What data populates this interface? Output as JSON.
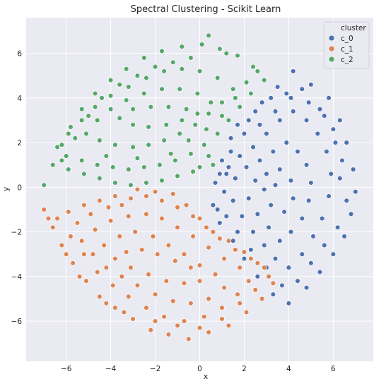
{
  "chart_data": {
    "type": "scatter",
    "title": "Spectral Clustering - Scikit Learn",
    "xlabel": "x",
    "ylabel": "y",
    "xlim": [
      -7.8,
      7.8
    ],
    "ylim": [
      -7.8,
      7.6
    ],
    "xticks": [
      -6,
      -4,
      -2,
      0,
      2,
      4,
      6
    ],
    "yticks": [
      -6,
      -4,
      -2,
      0,
      2,
      4,
      6
    ],
    "grid": true,
    "legend": {
      "title": "cluster",
      "placement": "top-right",
      "entries": [
        "c_0",
        "c_1",
        "c_2"
      ]
    },
    "series": [
      {
        "name": "c_0",
        "color": "#4c72b0",
        "points": [
          [
            1.0,
            1.2
          ],
          [
            1.4,
            2.2
          ],
          [
            2.2,
            3.0
          ],
          [
            2.8,
            3.8
          ],
          [
            3.5,
            4.5
          ],
          [
            4.2,
            5.2
          ],
          [
            5.0,
            4.6
          ],
          [
            5.8,
            4.0
          ],
          [
            6.3,
            3.0
          ],
          [
            6.6,
            2.0
          ],
          [
            6.9,
            0.8
          ],
          [
            7.0,
            -0.2
          ],
          [
            6.8,
            -1.2
          ],
          [
            6.5,
            -2.2
          ],
          [
            6.0,
            -3.0
          ],
          [
            5.4,
            -3.8
          ],
          [
            4.8,
            -4.5
          ],
          [
            4.0,
            -5.2
          ],
          [
            3.3,
            -4.8
          ],
          [
            2.6,
            -4.0
          ],
          [
            2.0,
            -3.2
          ],
          [
            1.5,
            -2.4
          ],
          [
            0.9,
            -1.6
          ],
          [
            0.6,
            -0.8
          ],
          [
            0.7,
            0.2
          ],
          [
            1.2,
            0.6
          ],
          [
            1.8,
            1.4
          ],
          [
            2.4,
            1.8
          ],
          [
            3.0,
            2.4
          ],
          [
            3.6,
            3.0
          ],
          [
            4.2,
            3.4
          ],
          [
            4.8,
            3.0
          ],
          [
            5.3,
            2.4
          ],
          [
            5.7,
            1.6
          ],
          [
            5.9,
            0.6
          ],
          [
            5.8,
            -0.4
          ],
          [
            5.5,
            -1.4
          ],
          [
            5.1,
            -2.2
          ],
          [
            4.6,
            -3.0
          ],
          [
            4.0,
            -3.6
          ],
          [
            3.4,
            -3.2
          ],
          [
            2.9,
            -2.6
          ],
          [
            2.4,
            -2.0
          ],
          [
            1.9,
            -1.3
          ],
          [
            1.5,
            -0.6
          ],
          [
            1.6,
            0.4
          ],
          [
            2.1,
            0.9
          ],
          [
            2.7,
            1.2
          ],
          [
            3.3,
            1.6
          ],
          [
            3.9,
            2.0
          ],
          [
            4.4,
            1.6
          ],
          [
            4.8,
            1.0
          ],
          [
            5.0,
            0.2
          ],
          [
            4.9,
            -0.6
          ],
          [
            4.6,
            -1.4
          ],
          [
            4.1,
            -2.0
          ],
          [
            3.6,
            -2.4
          ],
          [
            3.1,
            -1.8
          ],
          [
            2.6,
            -1.2
          ],
          [
            2.2,
            -0.5
          ],
          [
            2.5,
            0.3
          ],
          [
            3.0,
            0.6
          ],
          [
            3.6,
            0.8
          ],
          [
            4.1,
            0.3
          ],
          [
            4.2,
            -0.5
          ],
          [
            3.8,
            -1.1
          ],
          [
            3.2,
            -0.8
          ],
          [
            2.9,
            -0.1
          ],
          [
            3.4,
            0.1
          ],
          [
            1.1,
            -0.2
          ],
          [
            1.3,
            0.9
          ],
          [
            0.8,
            -1.0
          ],
          [
            1.7,
            2.8
          ],
          [
            2.5,
            3.4
          ],
          [
            3.2,
            4.0
          ],
          [
            3.9,
            4.2
          ],
          [
            4.6,
            4.4
          ],
          [
            5.4,
            3.5
          ],
          [
            6.0,
            2.6
          ],
          [
            6.4,
            1.2
          ],
          [
            6.6,
            -0.6
          ],
          [
            6.2,
            -1.8
          ],
          [
            5.6,
            -2.6
          ],
          [
            5.0,
            -3.4
          ],
          [
            4.4,
            -4.2
          ],
          [
            3.7,
            -4.4
          ],
          [
            3.0,
            -3.6
          ],
          [
            2.3,
            -2.8
          ],
          [
            1.7,
            -2.0
          ],
          [
            1.2,
            -1.3
          ],
          [
            0.9,
            0.6
          ],
          [
            1.4,
            1.6
          ],
          [
            2.0,
            2.4
          ],
          [
            2.7,
            2.8
          ],
          [
            3.4,
            3.4
          ],
          [
            4.1,
            4.0
          ],
          [
            4.9,
            3.8
          ],
          [
            5.6,
            3.2
          ],
          [
            6.1,
            2.0
          ],
          [
            6.3,
            0.4
          ]
        ]
      },
      {
        "name": "c_1",
        "color": "#dd8452",
        "points": [
          [
            -7.0,
            -1.0
          ],
          [
            -6.6,
            -1.8
          ],
          [
            -6.2,
            -2.6
          ],
          [
            -5.7,
            -3.4
          ],
          [
            -5.1,
            -4.2
          ],
          [
            -4.5,
            -4.9
          ],
          [
            -3.8,
            -5.4
          ],
          [
            -3.0,
            -5.9
          ],
          [
            -2.2,
            -6.4
          ],
          [
            -1.4,
            -6.6
          ],
          [
            -0.5,
            -6.8
          ],
          [
            0.4,
            -6.5
          ],
          [
            1.3,
            -6.2
          ],
          [
            2.1,
            -5.6
          ],
          [
            2.8,
            -5.0
          ],
          [
            3.3,
            -4.3
          ],
          [
            2.9,
            -3.6
          ],
          [
            2.3,
            -3.2
          ],
          [
            1.6,
            -2.8
          ],
          [
            0.9,
            -2.3
          ],
          [
            0.3,
            -1.8
          ],
          [
            -0.3,
            -1.3
          ],
          [
            -1.0,
            -0.9
          ],
          [
            -1.7,
            -0.6
          ],
          [
            -2.4,
            -0.4
          ],
          [
            -3.1,
            -0.5
          ],
          [
            -3.8,
            -0.4
          ],
          [
            -4.5,
            -0.6
          ],
          [
            -5.2,
            -0.8
          ],
          [
            -5.9,
            -1.1
          ],
          [
            -6.4,
            -1.4
          ],
          [
            -5.8,
            -2.2
          ],
          [
            -5.2,
            -3.0
          ],
          [
            -4.6,
            -3.8
          ],
          [
            -3.9,
            -4.4
          ],
          [
            -3.2,
            -4.9
          ],
          [
            -2.4,
            -5.4
          ],
          [
            -1.6,
            -5.8
          ],
          [
            -0.7,
            -6.0
          ],
          [
            0.2,
            -5.8
          ],
          [
            1.0,
            -5.4
          ],
          [
            1.7,
            -4.8
          ],
          [
            2.2,
            -4.2
          ],
          [
            1.8,
            -3.6
          ],
          [
            1.1,
            -3.2
          ],
          [
            0.4,
            -2.7
          ],
          [
            -0.3,
            -2.2
          ],
          [
            -1.0,
            -1.8
          ],
          [
            -1.7,
            -1.4
          ],
          [
            -2.4,
            -1.2
          ],
          [
            -3.2,
            -1.3
          ],
          [
            -4.0,
            -1.5
          ],
          [
            -4.7,
            -1.9
          ],
          [
            -5.3,
            -2.4
          ],
          [
            -4.8,
            -3.0
          ],
          [
            -4.2,
            -3.6
          ],
          [
            -3.5,
            -4.0
          ],
          [
            -2.8,
            -4.4
          ],
          [
            -2.0,
            -4.8
          ],
          [
            -1.2,
            -5.1
          ],
          [
            -0.4,
            -5.2
          ],
          [
            0.4,
            -5.0
          ],
          [
            1.1,
            -4.5
          ],
          [
            0.7,
            -3.9
          ],
          [
            0.0,
            -3.5
          ],
          [
            -0.7,
            -3.0
          ],
          [
            -1.4,
            -2.6
          ],
          [
            -2.1,
            -2.2
          ],
          [
            -2.9,
            -2.0
          ],
          [
            -3.6,
            -2.2
          ],
          [
            -4.3,
            -2.6
          ],
          [
            -3.8,
            -3.2
          ],
          [
            -3.1,
            -3.6
          ],
          [
            -2.3,
            -3.9
          ],
          [
            -1.5,
            -4.2
          ],
          [
            -0.7,
            -4.3
          ],
          [
            0.0,
            -4.2
          ],
          [
            -0.4,
            -3.6
          ],
          [
            -1.1,
            -3.3
          ],
          [
            -1.9,
            -3.0
          ],
          [
            -2.6,
            -2.8
          ],
          [
            -3.3,
            -2.9
          ],
          [
            -2.0,
            -0.2
          ],
          [
            -2.8,
            -0.1
          ],
          [
            -1.2,
            -0.3
          ],
          [
            -0.6,
            -0.8
          ],
          [
            0.0,
            -1.4
          ],
          [
            0.6,
            -2.0
          ],
          [
            1.3,
            -2.4
          ],
          [
            2.0,
            -2.9
          ],
          [
            2.6,
            -3.4
          ],
          [
            3.1,
            -4.0
          ],
          [
            2.5,
            -4.6
          ],
          [
            1.8,
            -5.2
          ],
          [
            1.0,
            -5.9
          ],
          [
            0.0,
            -6.3
          ],
          [
            -1.0,
            -6.2
          ],
          [
            -2.0,
            -6.0
          ],
          [
            -3.4,
            -5.6
          ],
          [
            -4.2,
            -5.2
          ],
          [
            -5.4,
            -4.0
          ],
          [
            -6.0,
            -3.0
          ],
          [
            -6.8,
            -1.4
          ],
          [
            -5.5,
            -1.6
          ],
          [
            -4.9,
            -1.2
          ],
          [
            -4.1,
            -0.9
          ],
          [
            -3.5,
            -0.8
          ]
        ]
      },
      {
        "name": "c_2",
        "color": "#55a868",
        "points": [
          [
            -7.0,
            0.1
          ],
          [
            -6.6,
            1.0
          ],
          [
            -6.2,
            1.9
          ],
          [
            -5.8,
            2.7
          ],
          [
            -5.3,
            3.5
          ],
          [
            -4.7,
            4.2
          ],
          [
            -4.0,
            4.8
          ],
          [
            -3.3,
            5.3
          ],
          [
            -2.5,
            5.8
          ],
          [
            -1.7,
            6.1
          ],
          [
            -0.8,
            6.3
          ],
          [
            0.1,
            6.4
          ],
          [
            0.9,
            6.2
          ],
          [
            1.7,
            5.9
          ],
          [
            2.4,
            5.4
          ],
          [
            2.9,
            4.8
          ],
          [
            2.3,
            4.2
          ],
          [
            1.8,
            3.6
          ],
          [
            1.3,
            3.0
          ],
          [
            0.8,
            2.4
          ],
          [
            0.2,
            1.9
          ],
          [
            -0.4,
            1.5
          ],
          [
            -1.1,
            1.2
          ],
          [
            -1.8,
            1.0
          ],
          [
            -2.5,
            0.9
          ],
          [
            -3.2,
            0.8
          ],
          [
            -3.9,
            0.9
          ],
          [
            -4.6,
            1.0
          ],
          [
            -5.3,
            1.2
          ],
          [
            -6.0,
            1.4
          ],
          [
            -6.4,
            1.8
          ],
          [
            -5.9,
            2.4
          ],
          [
            -5.3,
            3.0
          ],
          [
            -4.7,
            3.6
          ],
          [
            -4.0,
            4.1
          ],
          [
            -3.2,
            4.5
          ],
          [
            -2.4,
            4.9
          ],
          [
            -1.6,
            5.2
          ],
          [
            -0.8,
            5.3
          ],
          [
            0.0,
            5.2
          ],
          [
            0.8,
            4.9
          ],
          [
            1.5,
            4.4
          ],
          [
            1.0,
            3.8
          ],
          [
            0.4,
            3.3
          ],
          [
            -0.2,
            2.8
          ],
          [
            -0.9,
            2.4
          ],
          [
            -1.6,
            2.1
          ],
          [
            -2.3,
            1.9
          ],
          [
            -3.0,
            1.8
          ],
          [
            -3.8,
            1.9
          ],
          [
            -4.5,
            2.1
          ],
          [
            -5.1,
            2.4
          ],
          [
            -4.6,
            3.0
          ],
          [
            -4.0,
            3.5
          ],
          [
            -3.3,
            3.9
          ],
          [
            -2.5,
            4.2
          ],
          [
            -1.7,
            4.4
          ],
          [
            -0.9,
            4.4
          ],
          [
            -0.1,
            4.2
          ],
          [
            0.5,
            3.8
          ],
          [
            -0.1,
            3.3
          ],
          [
            -0.8,
            3.0
          ],
          [
            -1.5,
            2.8
          ],
          [
            -2.3,
            2.7
          ],
          [
            -3.0,
            2.8
          ],
          [
            -3.6,
            3.1
          ],
          [
            -3.0,
            3.5
          ],
          [
            -2.2,
            3.6
          ],
          [
            -1.4,
            3.6
          ],
          [
            -0.6,
            3.5
          ],
          [
            0.4,
            1.4
          ],
          [
            -0.3,
            0.7
          ],
          [
            -1.0,
            0.5
          ],
          [
            -1.7,
            0.3
          ],
          [
            -2.4,
            0.2
          ],
          [
            -3.1,
            0.1
          ],
          [
            -3.8,
            0.2
          ],
          [
            -4.5,
            0.4
          ],
          [
            -5.2,
            0.6
          ],
          [
            -5.9,
            0.8
          ],
          [
            -0.5,
            2.1
          ],
          [
            0.3,
            2.6
          ],
          [
            1.0,
            3.2
          ],
          [
            1.6,
            4.0
          ],
          [
            2.1,
            4.7
          ],
          [
            2.6,
            5.2
          ],
          [
            1.2,
            6.0
          ],
          [
            0.4,
            6.8
          ],
          [
            -0.4,
            5.8
          ],
          [
            -1.2,
            5.6
          ],
          [
            -2.0,
            5.4
          ],
          [
            -2.8,
            5.0
          ],
          [
            -3.6,
            4.6
          ],
          [
            -4.4,
            4.0
          ],
          [
            -5.0,
            3.2
          ],
          [
            -5.6,
            2.2
          ],
          [
            -6.2,
            1.2
          ],
          [
            -4.2,
            1.4
          ],
          [
            -2.8,
            1.3
          ],
          [
            -1.3,
            1.5
          ],
          [
            0.6,
            1.0
          ],
          [
            0.0,
            0.9
          ]
        ]
      }
    ]
  }
}
